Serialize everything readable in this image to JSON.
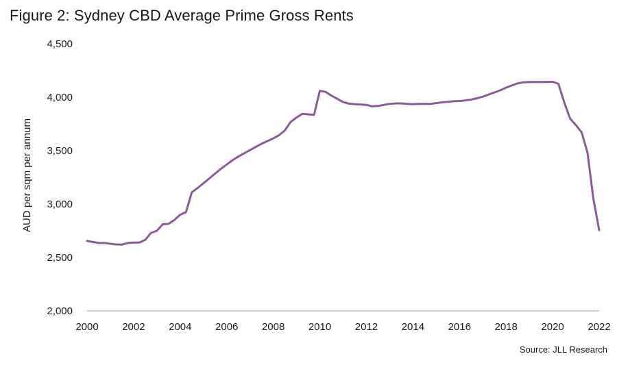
{
  "chart_data": {
    "type": "line",
    "title": "Figure 2: Sydney CBD Average Prime Gross Rents",
    "ylabel": "AUD per sqm per annum",
    "xlabel": "",
    "source": "Source: JLL Research",
    "xlim": [
      2000,
      2022
    ],
    "ylim": [
      2000,
      4500
    ],
    "x_ticks": [
      {
        "value": 2000,
        "label": "2000"
      },
      {
        "value": 2002,
        "label": "2002"
      },
      {
        "value": 2004,
        "label": "2004"
      },
      {
        "value": 2006,
        "label": "2006"
      },
      {
        "value": 2008,
        "label": "2008"
      },
      {
        "value": 2010,
        "label": "2010"
      },
      {
        "value": 2012,
        "label": "2012"
      },
      {
        "value": 2014,
        "label": "2014"
      },
      {
        "value": 2016,
        "label": "2016"
      },
      {
        "value": 2018,
        "label": "2018"
      },
      {
        "value": 2020,
        "label": "2020"
      },
      {
        "value": 2022,
        "label": "2022"
      }
    ],
    "y_ticks": [
      {
        "value": 2000,
        "label": "2,000"
      },
      {
        "value": 2500,
        "label": "2,500"
      },
      {
        "value": 3000,
        "label": "3,000"
      },
      {
        "value": 3500,
        "label": "3,500"
      },
      {
        "value": 4000,
        "label": "4,000"
      },
      {
        "value": 4500,
        "label": "4,500"
      }
    ],
    "grid": false,
    "legend": "none",
    "line_color": "#8a5a9c",
    "series": [
      {
        "x": [
          2000.0,
          2000.25,
          2000.5,
          2000.75,
          2001.0,
          2001.25,
          2001.5,
          2001.75,
          2002.0,
          2002.25,
          2002.5,
          2002.75,
          2003.0,
          2003.25,
          2003.5,
          2003.75,
          2004.0,
          2004.25,
          2004.5,
          2004.75,
          2005.0,
          2005.25,
          2005.5,
          2005.75,
          2006.0,
          2006.25,
          2006.5,
          2006.75,
          2007.0,
          2007.25,
          2007.5,
          2007.75,
          2008.0,
          2008.25,
          2008.5,
          2008.75,
          2009.0,
          2009.25,
          2009.5,
          2009.75,
          2010.0,
          2010.25,
          2010.5,
          2010.75,
          2011.0,
          2011.25,
          2011.5,
          2011.75,
          2012.0,
          2012.25,
          2012.5,
          2012.75,
          2013.0,
          2013.25,
          2013.5,
          2013.75,
          2014.0,
          2014.25,
          2014.5,
          2014.75,
          2015.0,
          2015.25,
          2015.5,
          2015.75,
          2016.0,
          2016.25,
          2016.5,
          2016.75,
          2017.0,
          2017.25,
          2017.5,
          2017.75,
          2018.0,
          2018.25,
          2018.5,
          2018.75,
          2019.0,
          2019.25,
          2019.5,
          2019.75,
          2020.0,
          2020.25,
          2020.5,
          2020.75,
          2021.0,
          2021.25,
          2021.5,
          2021.75,
          2022.0
        ],
        "y": [
          2655,
          2645,
          2635,
          2635,
          2628,
          2622,
          2620,
          2635,
          2640,
          2640,
          2665,
          2730,
          2750,
          2810,
          2815,
          2850,
          2900,
          2925,
          3110,
          3150,
          3195,
          3240,
          3285,
          3330,
          3370,
          3410,
          3445,
          3475,
          3505,
          3535,
          3565,
          3590,
          3615,
          3645,
          3690,
          3770,
          3810,
          3845,
          3840,
          3835,
          4060,
          4050,
          4015,
          3985,
          3955,
          3940,
          3935,
          3932,
          3928,
          3915,
          3918,
          3928,
          3938,
          3942,
          3942,
          3938,
          3935,
          3938,
          3938,
          3938,
          3945,
          3952,
          3958,
          3962,
          3965,
          3970,
          3978,
          3990,
          4005,
          4025,
          4045,
          4065,
          4090,
          4110,
          4130,
          4140,
          4142,
          4142,
          4142,
          4142,
          4145,
          4125,
          3950,
          3800,
          3740,
          3670,
          3480,
          3050,
          2755
        ]
      }
    ]
  }
}
